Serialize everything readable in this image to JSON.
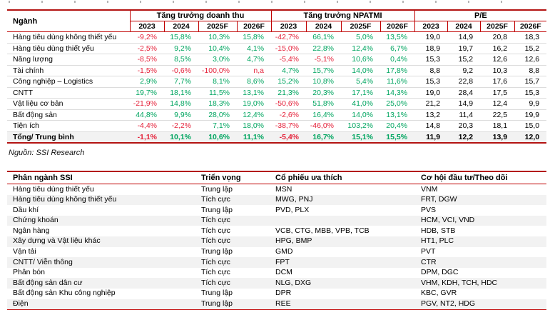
{
  "page": {
    "source_note": "Nguồn: SSI Research"
  },
  "colors": {
    "positive": "#00a560",
    "negative": "#e5233b",
    "border_red": "#c00000"
  },
  "sector_table": {
    "name_header": "Ngành",
    "group_headers": [
      "Tăng trưởng doanh thu",
      "Tăng trưởng NPATMI",
      "P/E"
    ],
    "year_headers": [
      "2023",
      "2024",
      "2025F",
      "2026F"
    ],
    "value_types": [
      "pct",
      "pct",
      "pct",
      "pct",
      "pct",
      "pct",
      "pct",
      "pct",
      "num",
      "num",
      "num",
      "num"
    ],
    "rows": [
      {
        "name": "Hàng tiêu dùng không thiết yếu",
        "values": [
          "-9,2%",
          "15,8%",
          "10,3%",
          "15,8%",
          "-42,7%",
          "66,1%",
          "5,0%",
          "13,5%",
          "19,0",
          "14,9",
          "20,8",
          "18,3"
        ]
      },
      {
        "name": "Hàng tiêu dùng thiết yếu",
        "values": [
          "-2,5%",
          "9,2%",
          "10,4%",
          "4,1%",
          "-15,0%",
          "22,8%",
          "12,4%",
          "6,7%",
          "18,9",
          "19,7",
          "16,2",
          "15,2"
        ]
      },
      {
        "name": "Năng lượng",
        "values": [
          "-8,5%",
          "8,5%",
          "3,0%",
          "4,7%",
          "-5,4%",
          "-5,1%",
          "10,6%",
          "0,4%",
          "15,3",
          "15,2",
          "12,6",
          "12,6"
        ]
      },
      {
        "name": "Tài chính",
        "values": [
          "-1,5%",
          "-0,6%",
          "-100,0%",
          "n,a",
          "4,7%",
          "15,7%",
          "14,0%",
          "17,8%",
          "8,8",
          "9,2",
          "10,3",
          "8,8"
        ]
      },
      {
        "name": "Công nghiệp – Logistics",
        "values": [
          "2,9%",
          "7,7%",
          "8,1%",
          "8,6%",
          "15,2%",
          "10,8%",
          "5,4%",
          "11,6%",
          "15,3",
          "22,8",
          "17,6",
          "15,7"
        ]
      },
      {
        "name": "CNTT",
        "values": [
          "19,7%",
          "18,1%",
          "11,5%",
          "13,1%",
          "21,3%",
          "20,3%",
          "17,1%",
          "14,3%",
          "19,0",
          "28,4",
          "17,5",
          "15,3"
        ]
      },
      {
        "name": "Vật liệu cơ bản",
        "values": [
          "-21,9%",
          "14,8%",
          "18,3%",
          "19,0%",
          "-50,6%",
          "51,8%",
          "41,0%",
          "25,0%",
          "21,2",
          "14,9",
          "12,4",
          "9,9"
        ]
      },
      {
        "name": "Bất động sản",
        "values": [
          "44,8%",
          "9,9%",
          "28,0%",
          "12,4%",
          "-2,6%",
          "16,4%",
          "14,0%",
          "13,1%",
          "13,2",
          "11,4",
          "22,5",
          "19,9"
        ]
      },
      {
        "name": "Tiện ích",
        "values": [
          "-4,4%",
          "-2,2%",
          "7,1%",
          "18,0%",
          "-38,7%",
          "-46,0%",
          "103,2%",
          "20,4%",
          "14,8",
          "20,3",
          "18,1",
          "15,0"
        ]
      }
    ],
    "total_row": {
      "name": "Tổng/ Trung bình",
      "values": [
        "-1,1%",
        "10,1%",
        "10,6%",
        "11,1%",
        "-5,4%",
        "16,7%",
        "15,1%",
        "15,5%",
        "11,9",
        "12,2",
        "13,9",
        "12,0"
      ]
    }
  },
  "classification_table": {
    "headers": [
      "Phân ngành SSI",
      "Triển vọng",
      "Cổ phiếu ưa thích",
      "Cơ hội đầu tư/Theo dõi"
    ],
    "rows": [
      [
        "Hàng tiêu dùng thiết yếu",
        "Trung lập",
        "MSN",
        "VNM"
      ],
      [
        "Hàng tiêu dùng không thiết yếu",
        "Tích cực",
        "MWG, PNJ",
        "FRT, DGW"
      ],
      [
        "Dầu khí",
        "Trung lập",
        "PVD, PLX",
        "PVS"
      ],
      [
        "Chứng khoán",
        "Tích cực",
        "",
        "HCM, VCI, VND"
      ],
      [
        "Ngân hàng",
        "Tích cực",
        "VCB, CTG, MBB, VPB, TCB",
        "HDB, STB"
      ],
      [
        "Xây dựng và Vật liệu khác",
        "Tích cực",
        "HPG, BMP",
        "HT1, PLC"
      ],
      [
        "Vận tải",
        "Trung lập",
        "GMD",
        "PVT"
      ],
      [
        "CNTT/ Viễn thông",
        "Tích cực",
        "FPT",
        "CTR"
      ],
      [
        "Phân bón",
        "Tích cực",
        "DCM",
        "DPM, DGC"
      ],
      [
        "Bất động sản dân cư",
        "Tích cực",
        "NLG, DXG",
        "VHM, KDH, TCH, HDC"
      ],
      [
        "Bất động sản Khu công nghiệp",
        "Trung lập",
        "DPR",
        "KBC, GVR"
      ],
      [
        "Điện",
        "Trung lập",
        "REE",
        "PGV, NT2, HDG"
      ]
    ]
  }
}
